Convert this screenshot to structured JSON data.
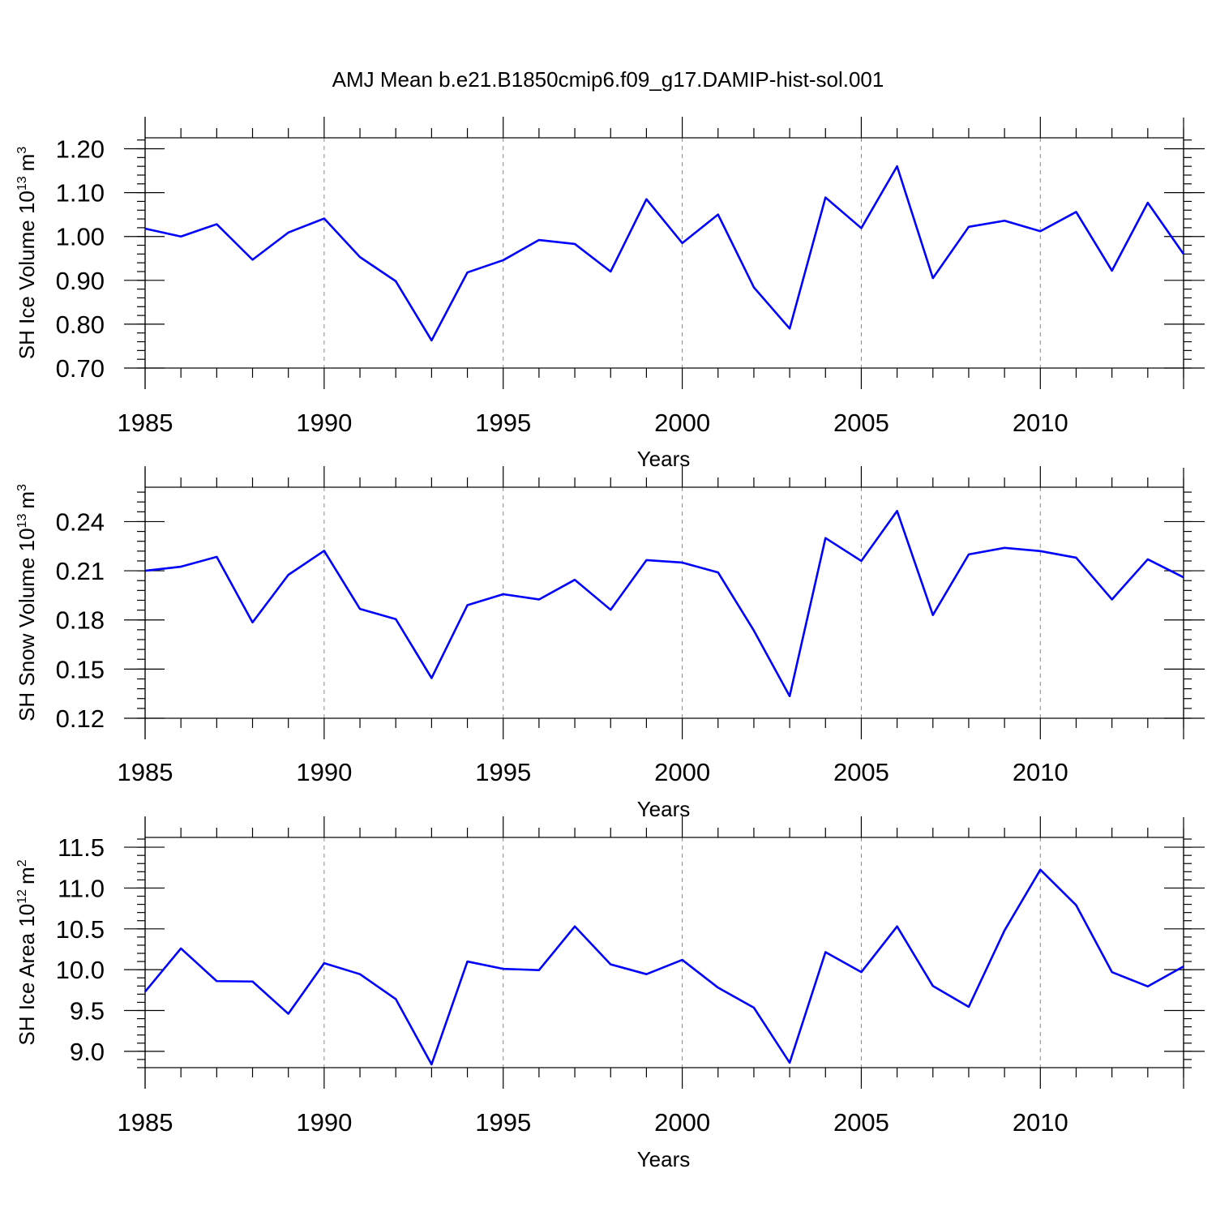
{
  "colors": {
    "line": "#0000ff",
    "axis": "#000000",
    "grid": "#888888"
  },
  "chart_data": [
    {
      "type": "line",
      "title": "AMJ Mean b.e21.B1850cmip6.f09_g17.DAMIP-hist-sol.001",
      "xlabel": "Years",
      "ylabel_main": "SH Ice Volume 10",
      "ylabel_exp": "13",
      "ylabel_unit": "m",
      "ylabel_unit_exp": "3",
      "xlim": [
        1985,
        2014
      ],
      "ylim": [
        0.7,
        1.225
      ],
      "yticks": [
        0.7,
        0.8,
        0.9,
        1.0,
        1.1,
        1.2
      ],
      "ytick_labels": [
        "0.70",
        "0.80",
        "0.90",
        "1.00",
        "1.10",
        "1.20"
      ],
      "yminor_step": 0.02,
      "xticks": [
        1985,
        1990,
        1995,
        2000,
        2005,
        2010
      ],
      "xtick_labels": [
        "1985",
        "1990",
        "1995",
        "2000",
        "2005",
        "2010"
      ],
      "series": [
        {
          "name": "SH Ice Volume",
          "x": [
            1985,
            1986,
            1987,
            1988,
            1989,
            1990,
            1991,
            1992,
            1993,
            1994,
            1995,
            1996,
            1997,
            1998,
            1999,
            2000,
            2001,
            2002,
            2003,
            2004,
            2005,
            2006,
            2007,
            2008,
            2009,
            2010,
            2011,
            2012,
            2013,
            2014
          ],
          "values": [
            1.018,
            1.0,
            1.028,
            0.947,
            1.009,
            1.041,
            0.953,
            0.898,
            0.763,
            0.918,
            0.946,
            0.992,
            0.983,
            0.92,
            1.085,
            0.985,
            1.05,
            0.884,
            0.79,
            1.089,
            1.019,
            1.16,
            0.905,
            1.022,
            1.036,
            1.012,
            1.056,
            0.922,
            1.077,
            0.96
          ]
        }
      ]
    },
    {
      "type": "line",
      "title": "",
      "xlabel": "Years",
      "ylabel_main": "SH Snow Volume 10",
      "ylabel_exp": "13",
      "ylabel_unit": "m",
      "ylabel_unit_exp": "3",
      "xlim": [
        1985,
        2014
      ],
      "ylim": [
        0.12,
        0.261
      ],
      "yticks": [
        0.12,
        0.15,
        0.18,
        0.21,
        0.24
      ],
      "ytick_labels": [
        "0.12",
        "0.15",
        "0.18",
        "0.21",
        "0.24"
      ],
      "yminor_step": 0.006,
      "xticks": [
        1985,
        1990,
        1995,
        2000,
        2005,
        2010
      ],
      "xtick_labels": [
        "1985",
        "1990",
        "1995",
        "2000",
        "2005",
        "2010"
      ],
      "series": [
        {
          "name": "SH Snow Volume",
          "x": [
            1985,
            1986,
            1987,
            1988,
            1989,
            1990,
            1991,
            1992,
            1993,
            1994,
            1995,
            1996,
            1997,
            1998,
            1999,
            2000,
            2001,
            2002,
            2003,
            2004,
            2005,
            2006,
            2007,
            2008,
            2009,
            2010,
            2011,
            2012,
            2013,
            2014
          ],
          "values": [
            0.21,
            0.2125,
            0.2185,
            0.1785,
            0.2075,
            0.2222,
            0.1867,
            0.1805,
            0.1445,
            0.189,
            0.1957,
            0.1925,
            0.2045,
            0.1862,
            0.2165,
            0.215,
            0.209,
            0.1735,
            0.1335,
            0.23,
            0.216,
            0.2465,
            0.183,
            0.22,
            0.224,
            0.222,
            0.218,
            0.1925,
            0.217,
            0.206
          ]
        }
      ]
    },
    {
      "type": "line",
      "title": "",
      "xlabel": "Years",
      "ylabel_main": "SH Ice Area 10",
      "ylabel_exp": "12",
      "ylabel_unit": "m",
      "ylabel_unit_exp": "2",
      "xlim": [
        1985,
        2014
      ],
      "ylim": [
        8.8,
        11.62
      ],
      "yticks": [
        9.0,
        9.5,
        10.0,
        10.5,
        11.0,
        11.5
      ],
      "ytick_labels": [
        "9.0",
        "9.5",
        "10.0",
        "10.5",
        "11.0",
        "11.5"
      ],
      "yminor_step": 0.1,
      "xticks": [
        1985,
        1990,
        1995,
        2000,
        2005,
        2010
      ],
      "xtick_labels": [
        "1985",
        "1990",
        "1995",
        "2000",
        "2005",
        "2010"
      ],
      "series": [
        {
          "name": "SH Ice Area",
          "x": [
            1985,
            1986,
            1987,
            1988,
            1989,
            1990,
            1991,
            1992,
            1993,
            1994,
            1995,
            1996,
            1997,
            1998,
            1999,
            2000,
            2001,
            2002,
            2003,
            2004,
            2005,
            2006,
            2007,
            2008,
            2009,
            2010,
            2011,
            2012,
            2013,
            2014
          ],
          "values": [
            9.73,
            10.26,
            9.86,
            9.855,
            9.46,
            10.08,
            9.945,
            9.64,
            8.84,
            10.1,
            10.01,
            9.995,
            10.53,
            10.065,
            9.945,
            10.12,
            9.78,
            9.535,
            8.86,
            10.215,
            9.97,
            10.53,
            9.8,
            9.545,
            10.48,
            11.225,
            10.79,
            9.97,
            9.795,
            10.04
          ]
        }
      ]
    }
  ]
}
